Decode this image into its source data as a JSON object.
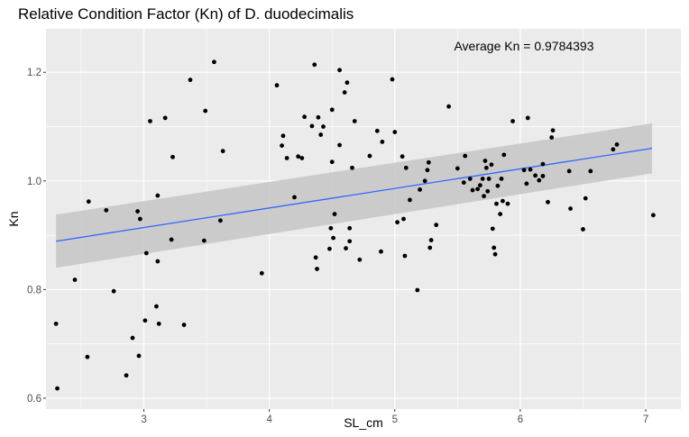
{
  "chart_data": {
    "type": "scatter",
    "title": "Relative Condition Factor (Kn) of D. duodecimalis",
    "xlabel": "SL_cm",
    "ylabel": "Kn",
    "xlim": [
      2.22,
      7.28
    ],
    "ylim": [
      0.58,
      1.28
    ],
    "x_ticks": [
      3,
      4,
      5,
      6,
      7
    ],
    "y_ticks": [
      0.6,
      0.8,
      1.0,
      1.2
    ],
    "x_tick_labels": [
      "3",
      "4",
      "5",
      "6",
      "7"
    ],
    "y_tick_labels": [
      "0.6",
      "0.8",
      "1.0",
      "1.2"
    ],
    "grid": true,
    "annotation": "Average Kn = 0.9784393",
    "colors": {
      "panel": "#ebebeb",
      "grid": "#ffffff",
      "points": "#000000",
      "trend_line": "#3366ff",
      "confidence_band": "#c8c8c8"
    },
    "trend": {
      "type": "linear",
      "x": [
        2.3,
        7.05
      ],
      "y": [
        0.889,
        1.06
      ],
      "ci_upper": [
        0.938,
        1.106
      ],
      "ci_lower": [
        0.84,
        1.014
      ]
    },
    "points": [
      [
        2.3,
        0.737
      ],
      [
        2.31,
        0.618
      ],
      [
        2.45,
        0.818
      ],
      [
        2.55,
        0.676
      ],
      [
        2.56,
        0.962
      ],
      [
        2.7,
        0.946
      ],
      [
        2.76,
        0.797
      ],
      [
        2.86,
        0.642
      ],
      [
        2.91,
        0.711
      ],
      [
        2.95,
        0.944
      ],
      [
        2.96,
        0.678
      ],
      [
        2.97,
        0.93
      ],
      [
        3.01,
        0.743
      ],
      [
        3.02,
        0.867
      ],
      [
        3.05,
        1.11
      ],
      [
        3.1,
        0.769
      ],
      [
        3.11,
        0.852
      ],
      [
        3.11,
        0.973
      ],
      [
        3.12,
        0.737
      ],
      [
        3.17,
        1.116
      ],
      [
        3.22,
        0.892
      ],
      [
        3.23,
        1.044
      ],
      [
        3.32,
        0.735
      ],
      [
        3.37,
        1.186
      ],
      [
        3.48,
        0.89
      ],
      [
        3.49,
        1.129
      ],
      [
        3.56,
        1.219
      ],
      [
        3.61,
        0.927
      ],
      [
        3.63,
        1.055
      ],
      [
        3.94,
        0.83
      ],
      [
        4.06,
        1.176
      ],
      [
        4.1,
        1.065
      ],
      [
        4.11,
        1.083
      ],
      [
        4.14,
        1.042
      ],
      [
        4.2,
        0.97
      ],
      [
        4.23,
        1.045
      ],
      [
        4.26,
        1.042
      ],
      [
        4.28,
        1.118
      ],
      [
        4.34,
        1.101
      ],
      [
        4.36,
        1.214
      ],
      [
        4.37,
        0.859
      ],
      [
        4.38,
        0.838
      ],
      [
        4.39,
        1.117
      ],
      [
        4.41,
        1.085
      ],
      [
        4.43,
        1.1
      ],
      [
        4.48,
        0.875
      ],
      [
        4.49,
        0.913
      ],
      [
        4.5,
        1.035
      ],
      [
        4.5,
        1.131
      ],
      [
        4.51,
        0.895
      ],
      [
        4.52,
        0.939
      ],
      [
        4.56,
        1.204
      ],
      [
        4.56,
        1.066
      ],
      [
        4.6,
        1.163
      ],
      [
        4.61,
        0.876
      ],
      [
        4.62,
        1.181
      ],
      [
        4.64,
        0.913
      ],
      [
        4.64,
        0.889
      ],
      [
        4.66,
        1.024
      ],
      [
        4.68,
        1.11
      ],
      [
        4.72,
        0.855
      ],
      [
        4.8,
        1.046
      ],
      [
        4.86,
        1.092
      ],
      [
        4.89,
        0.87
      ],
      [
        4.9,
        1.072
      ],
      [
        4.98,
        1.187
      ],
      [
        5.0,
        1.09
      ],
      [
        5.02,
        0.924
      ],
      [
        5.06,
        1.045
      ],
      [
        5.07,
        0.93
      ],
      [
        5.08,
        0.862
      ],
      [
        5.09,
        1.024
      ],
      [
        5.12,
        0.965
      ],
      [
        5.18,
        0.799
      ],
      [
        5.2,
        0.984
      ],
      [
        5.24,
        1.0
      ],
      [
        5.26,
        1.02
      ],
      [
        5.27,
        1.034
      ],
      [
        5.28,
        0.877
      ],
      [
        5.29,
        0.891
      ],
      [
        5.33,
        0.919
      ],
      [
        5.43,
        1.137
      ],
      [
        5.5,
        1.023
      ],
      [
        5.55,
        0.997
      ],
      [
        5.56,
        1.046
      ],
      [
        5.6,
        1.004
      ],
      [
        5.62,
        0.983
      ],
      [
        5.66,
        0.985
      ],
      [
        5.68,
        0.992
      ],
      [
        5.7,
        1.004
      ],
      [
        5.71,
        0.972
      ],
      [
        5.72,
        1.037
      ],
      [
        5.73,
        1.024
      ],
      [
        5.74,
        0.981
      ],
      [
        5.75,
        1.004
      ],
      [
        5.77,
        1.03
      ],
      [
        5.78,
        0.912
      ],
      [
        5.79,
        0.877
      ],
      [
        5.8,
        0.865
      ],
      [
        5.81,
        0.958
      ],
      [
        5.82,
        0.991
      ],
      [
        5.84,
        0.939
      ],
      [
        5.85,
        1.004
      ],
      [
        5.86,
        0.963
      ],
      [
        5.87,
        1.048
      ],
      [
        5.9,
        0.958
      ],
      [
        5.94,
        1.11
      ],
      [
        6.03,
        1.02
      ],
      [
        6.05,
        0.995
      ],
      [
        6.06,
        1.116
      ],
      [
        6.08,
        1.021
      ],
      [
        6.12,
        1.01
      ],
      [
        6.15,
        1.001
      ],
      [
        6.18,
        1.009
      ],
      [
        6.18,
        1.031
      ],
      [
        6.22,
        0.961
      ],
      [
        6.25,
        1.08
      ],
      [
        6.26,
        1.093
      ],
      [
        6.39,
        1.018
      ],
      [
        6.4,
        0.949
      ],
      [
        6.5,
        0.911
      ],
      [
        6.52,
        0.968
      ],
      [
        6.56,
        1.018
      ],
      [
        6.74,
        1.058
      ],
      [
        6.77,
        1.067
      ],
      [
        7.06,
        0.937
      ]
    ]
  }
}
